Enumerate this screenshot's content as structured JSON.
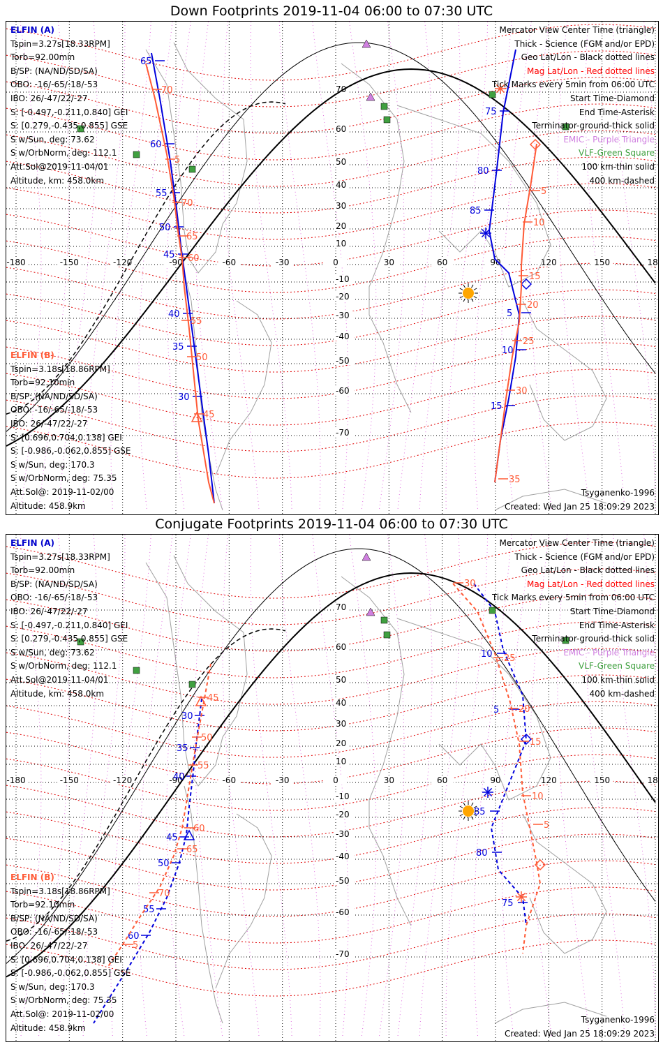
{
  "panels": [
    {
      "id": "down",
      "title": "Down Footprints 2019-11-04 06:00 to 07:30 UTC",
      "elfin_a": {
        "name": "ELFIN (A)",
        "lines": [
          "Tspin=3.27s[18.33RPM]",
          "Torb=92.00min",
          "B/SP: (NA/ND/SD/SA)",
          "OBO: -16/-65/-18/-53",
          "IBO: 26/-47/22/-27",
          "S: [-0.497,-0.211,0.840] GEI",
          "S: [0.279,-0.435,0.855] GSE",
          "S w/Sun, deg: 73.62",
          "S w/OrbNorm, deg: 112.1",
          "Att.Sol@2019-11-04/01",
          "Altitude, km: 458.0km"
        ]
      },
      "elfin_b": {
        "name": "ELFIN (B)",
        "lines": [
          "Tspin=3.18s[18.86RPM]",
          "Torb=92.10min",
          "B/SP: (NA/ND/SD/SA)",
          "OBO: -16/-65/-18/-53",
          "IBO: 26/-47/22/-27",
          "S: [0.696,0.704,0.138] GEI",
          "S: [-0.986,-0.062,0.855] GSE",
          "S w/Sun, deg: 170.3",
          "S w/OrbNorm, deg: 75.35",
          "Att.Sol@: 2019-11-02/00",
          "Altitude: 458.9km"
        ]
      },
      "footer_right_1": "Tsyganenko-1996",
      "footer_right_2": "Created: Wed Jan 25 18:09:29 2023"
    },
    {
      "id": "conjugate",
      "title": "Conjugate Footprints 2019-11-04 06:00 to 07:30 UTC",
      "elfin_a": {
        "name": "ELFIN (A)",
        "lines": [
          "Tspin=3.27s[18.33RPM]",
          "Torb=92.00min",
          "B/SP: (NA/ND/SD/SA)",
          "OBO: -16/-65/-18/-53",
          "IBO: 26/-47/22/-27",
          "S: [-0.497,-0.211,0.840] GEI",
          "S: [0.279,-0.435,0.855] GSE",
          "S w/Sun, deg: 73.62",
          "S w/OrbNorm, deg: 112.1",
          "Att.Sol@2019-11-04/01",
          "Altitude, km: 458.0km"
        ]
      },
      "elfin_b": {
        "name": "ELFIN (B)",
        "lines": [
          "Tspin=3.18s[18.86RPM]",
          "Torb=92.10min",
          "B/SP: (NA/ND/SD/SA)",
          "OBO: -16/-65/-18/-53",
          "IBO: 26/-47/22/-27",
          "S: [0.696,0.704,0.138] GEI",
          "S: [-0.986,-0.062,0.855] GSE",
          "S w/Sun, deg: 170.3",
          "S w/OrbNorm, deg: 75.35",
          "Att.Sol@: 2019-11-02/00",
          "Altitude: 458.9km"
        ]
      },
      "footer_right_1": "Tsyganenko-1996",
      "footer_right_2": "Created: Wed Jan 25 18:09:29 2023"
    }
  ],
  "legend": [
    {
      "text": "Mercator View Center Time (triangle)",
      "color": "#000000"
    },
    {
      "text": "Thick - Science (FGM and/or EPD)",
      "color": "#000000"
    },
    {
      "text": "Geo Lat/Lon - Black dotted lines",
      "color": "#000000"
    },
    {
      "text": "Mag Lat/Lon - Red dotted lines",
      "color": "#ff0000"
    },
    {
      "text": "Tick Marks every 5min from 06:00 UTC",
      "color": "#000000"
    },
    {
      "text": "Start Time-Diamond",
      "color": "#000000"
    },
    {
      "text": "End Time-Asterisk",
      "color": "#000000"
    },
    {
      "text": "Terminator-ground-thick solid",
      "color": "#000000"
    },
    {
      "text": "EMIC - Purple Triangle",
      "color": "#d080e0"
    },
    {
      "text": "VLF-Green Square",
      "color": "#40a040"
    },
    {
      "text": "100 km-thin solid",
      "color": "#000000"
    },
    {
      "text": "400 km-dashed",
      "color": "#000000"
    }
  ],
  "map": {
    "lon_labels": [
      "-180",
      "-150",
      "-120",
      "-90",
      "-60",
      "-30",
      "0",
      "30",
      "60",
      "90",
      "120",
      "150",
      "180"
    ],
    "lat_labels": [
      "70",
      "60",
      "50",
      "40",
      "30",
      "20",
      "10",
      "0",
      "-10",
      "-20",
      "-30",
      "-40",
      "-50",
      "-60",
      "-70"
    ],
    "colors": {
      "elfin_a": "#0000dd",
      "elfin_b": "#ff5a36",
      "mag_grid": "#e00000",
      "geo_grid": "#000000",
      "mlt_grid": "#e070e0",
      "coast": "#a0a0a0",
      "sun": "#ffa500",
      "vlf": "#40a040",
      "emic": "#d080e0"
    }
  },
  "down_tracks": {
    "a_labels": [
      "65",
      "60",
      "55",
      "50",
      "45",
      "40",
      "35",
      "30"
    ],
    "b_labels": [
      "70",
      "5",
      "70",
      "65",
      "60",
      "55",
      "50",
      "45"
    ],
    "a2_labels": [
      "75",
      "80",
      "85",
      "5",
      "10",
      "15"
    ],
    "b2_labels": [
      "5",
      "10",
      "15",
      "20",
      "25",
      "30",
      "35"
    ]
  },
  "conj_tracks": {
    "a_labels": [
      "30",
      "35",
      "40",
      "45",
      "50",
      "55",
      "60"
    ],
    "b_labels": [
      "45",
      "50",
      "55",
      "60",
      "65",
      "70",
      "5"
    ],
    "a2_labels": [
      "10",
      "5",
      "85",
      "80",
      "75"
    ],
    "b2_labels": [
      "30",
      "25",
      "20",
      "15",
      "10",
      "5"
    ]
  }
}
